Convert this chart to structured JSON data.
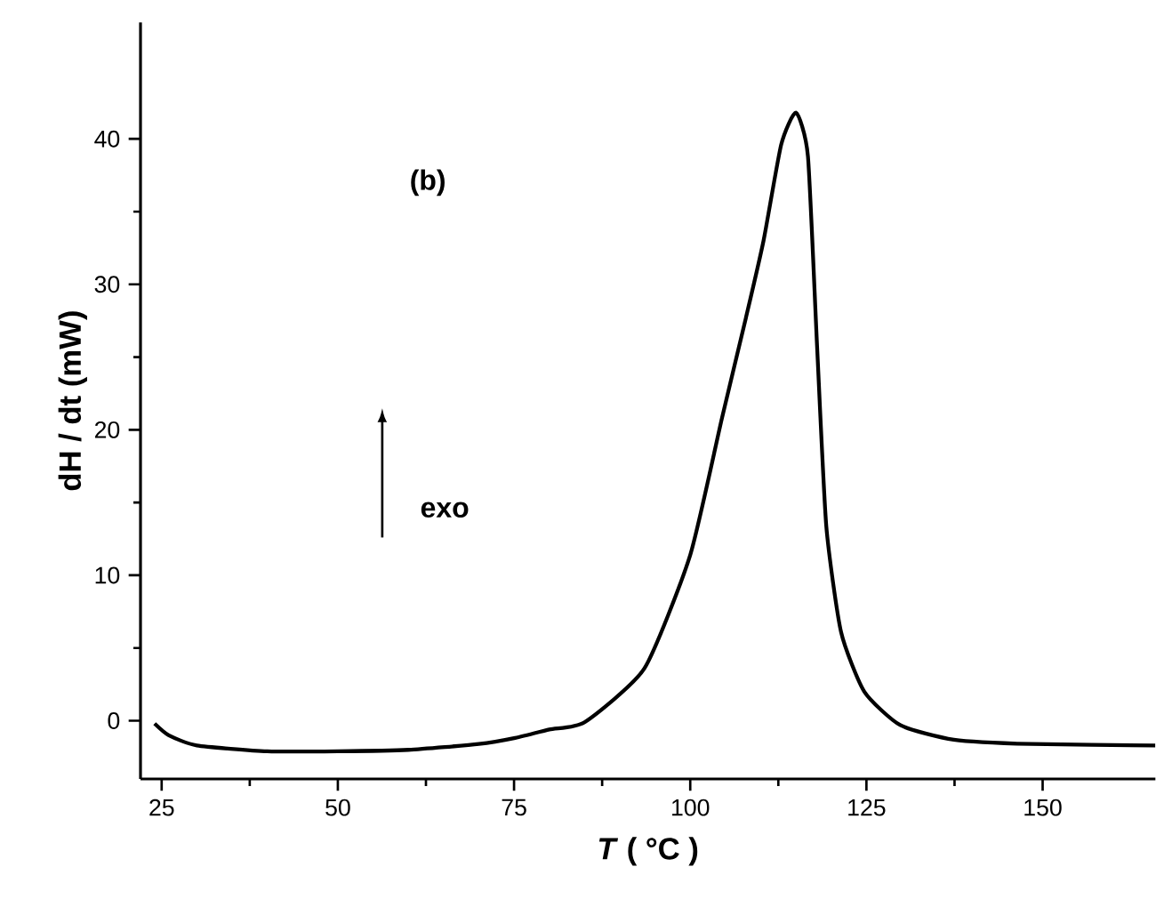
{
  "chart_data": {
    "type": "line",
    "xlabel": "*T* ( °C )",
    "ylabel": "dH / dt (mW)",
    "annotations": [
      "(b)",
      "exo"
    ],
    "x": [
      24,
      26,
      30,
      40,
      50,
      60,
      70,
      75,
      80,
      85,
      93.5,
      100,
      104.5,
      107.9,
      110.4,
      112.9,
      115,
      116.7,
      118,
      119.3,
      121.4,
      124.7,
      129.8,
      137.4,
      148.4,
      166
    ],
    "series": [
      {
        "color": "#000000",
        "values": [
          -0.2,
          -1.0,
          -1.7,
          -2.1,
          -2.1,
          -2.0,
          -1.6,
          -1.2,
          -0.6,
          -0.1,
          3.6,
          11.4,
          20.8,
          27.7,
          33.0,
          39.6,
          41.8,
          38.8,
          25.7,
          13.4,
          6.1,
          2.0,
          -0.3,
          -1.3,
          -1.6,
          -1.7
        ]
      }
    ],
    "xlim": [
      22,
      166
    ],
    "ylim": [
      -4,
      48
    ],
    "xticks": [
      25,
      50,
      75,
      100,
      125,
      150
    ],
    "yticks": [
      0,
      10,
      20,
      30,
      40
    ],
    "grid": false,
    "marker": "none",
    "line_style": "solid"
  }
}
